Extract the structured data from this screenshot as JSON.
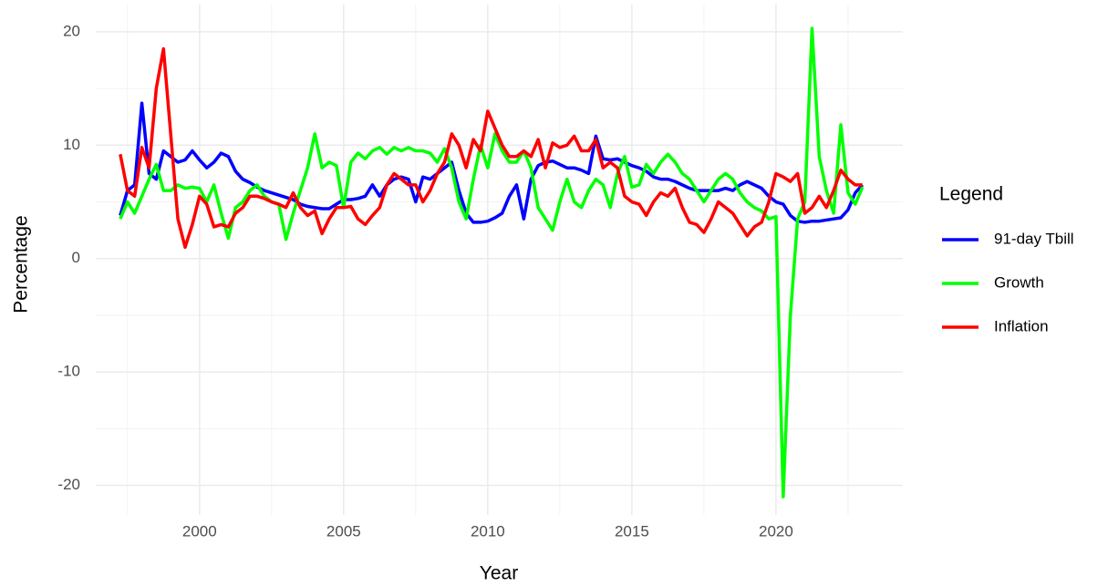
{
  "chart_data": {
    "type": "line",
    "x_label": "Year",
    "y_label": "Percentage",
    "legend_title": "Legend",
    "legend": "right",
    "grid": true,
    "xlim": [
      1996.4,
      2024.4
    ],
    "xticks": [
      2000,
      2005,
      2010,
      2015,
      2020
    ],
    "ylim": [
      -22.6,
      22.4
    ],
    "yticks": [
      -20,
      -10,
      0,
      10,
      20
    ],
    "x": [
      1997.25,
      1997.5,
      1997.75,
      1998,
      1998.25,
      1998.5,
      1998.75,
      1999,
      1999.25,
      1999.5,
      1999.75,
      2000,
      2000.25,
      2000.5,
      2000.75,
      2001,
      2001.25,
      2001.5,
      2001.75,
      2002,
      2002.25,
      2002.5,
      2002.75,
      2003,
      2003.25,
      2003.5,
      2003.75,
      2004,
      2004.25,
      2004.5,
      2004.75,
      2005,
      2005.25,
      2005.5,
      2005.75,
      2006,
      2006.25,
      2006.5,
      2006.75,
      2007,
      2007.25,
      2007.5,
      2007.75,
      2008,
      2008.25,
      2008.5,
      2008.75,
      2009,
      2009.25,
      2009.5,
      2009.75,
      2010,
      2010.25,
      2010.5,
      2010.75,
      2011,
      2011.25,
      2011.5,
      2011.75,
      2012,
      2012.25,
      2012.5,
      2012.75,
      2013,
      2013.25,
      2013.5,
      2013.75,
      2014,
      2014.25,
      2014.5,
      2014.75,
      2015,
      2015.25,
      2015.5,
      2015.75,
      2016,
      2016.25,
      2016.5,
      2016.75,
      2017,
      2017.25,
      2017.5,
      2017.75,
      2018,
      2018.25,
      2018.5,
      2018.75,
      2019,
      2019.25,
      2019.5,
      2019.75,
      2020,
      2020.25,
      2020.5,
      2020.75,
      2021,
      2021.25,
      2021.5,
      2021.75,
      2022,
      2022.25,
      2022.5,
      2022.75,
      2023
    ],
    "series": [
      {
        "name": "91-day Tbill",
        "color": "#0000ff",
        "values": [
          3.8,
          6,
          6.5,
          13.7,
          7.5,
          7,
          9.5,
          9,
          8.5,
          8.7,
          9.5,
          8.7,
          8,
          8.5,
          9.3,
          9,
          7.7,
          7,
          6.7,
          6.3,
          6,
          5.8,
          5.6,
          5.4,
          5.2,
          4.8,
          4.6,
          4.5,
          4.4,
          4.4,
          4.8,
          5.2,
          5.2,
          5.3,
          5.5,
          6.5,
          5.5,
          6.5,
          7,
          7.2,
          7,
          5,
          7.2,
          7,
          7.5,
          8,
          8.5,
          6,
          4,
          3.2,
          3.2,
          3.3,
          3.6,
          4,
          5.5,
          6.5,
          3.5,
          7,
          8.2,
          8.5,
          8.6,
          8.3,
          8,
          8,
          7.8,
          7.5,
          10.8,
          8.8,
          8.7,
          8.8,
          8.5,
          8.2,
          8,
          7.7,
          7.2,
          7,
          7,
          6.8,
          6.5,
          6.2,
          6,
          6,
          6,
          6,
          6.2,
          6,
          6.5,
          6.8,
          6.5,
          6.2,
          5.5,
          5,
          4.8,
          3.8,
          3.3,
          3.2,
          3.3,
          3.3,
          3.4,
          3.5,
          3.6,
          4.3,
          5.8,
          6.5
        ]
      },
      {
        "name": "Growth",
        "color": "#00ff00",
        "values": [
          3.5,
          5,
          4,
          5.5,
          7,
          8.3,
          6,
          6,
          6.5,
          6.2,
          6.3,
          6.2,
          5,
          6.5,
          4,
          1.8,
          4.5,
          5,
          6,
          6.5,
          5.5,
          5,
          4.8,
          1.7,
          4,
          6,
          8,
          11,
          8,
          8.5,
          8.2,
          4.5,
          8.5,
          9.3,
          8.8,
          9.5,
          9.8,
          9.2,
          9.8,
          9.5,
          9.8,
          9.5,
          9.5,
          9.3,
          8.5,
          9.7,
          8,
          5,
          3.5,
          7,
          10,
          8,
          11,
          9.5,
          8.5,
          8.5,
          9.5,
          8,
          4.5,
          3.5,
          2.5,
          5,
          7,
          5,
          4.5,
          6,
          7,
          6.5,
          4.5,
          7.5,
          9,
          6.3,
          6.5,
          8.3,
          7.5,
          8.5,
          9.2,
          8.5,
          7.5,
          7,
          6,
          5,
          6,
          7,
          7.5,
          7,
          5.8,
          5,
          4.5,
          4.2,
          3.5,
          3.7,
          -21,
          -5,
          3.5,
          5,
          20.3,
          9,
          6,
          4,
          11.8,
          5.8,
          4.8,
          6.3
        ]
      },
      {
        "name": "Inflation",
        "color": "#ff0000",
        "values": [
          9.2,
          6,
          5.5,
          9.8,
          8,
          15,
          18.5,
          11,
          3.5,
          1,
          3,
          5.5,
          4.8,
          2.8,
          3,
          2.8,
          4,
          4.5,
          5.5,
          5.5,
          5.3,
          5,
          4.8,
          4.5,
          5.8,
          4.5,
          3.8,
          4.2,
          2.2,
          3.5,
          4.5,
          4.5,
          4.6,
          3.5,
          3,
          3.8,
          4.5,
          6.5,
          7.5,
          7,
          6.5,
          6.5,
          5,
          6,
          7.5,
          8.5,
          11,
          10,
          8,
          10.5,
          9.5,
          13,
          11.5,
          10,
          9,
          9,
          9.5,
          9,
          10.5,
          8,
          10.2,
          9.8,
          10,
          10.8,
          9.5,
          9.5,
          10.5,
          8,
          8.5,
          8,
          5.5,
          5,
          4.8,
          3.8,
          5,
          5.8,
          5.5,
          6.2,
          4.5,
          3.2,
          3,
          2.3,
          3.5,
          5,
          4.5,
          4,
          3,
          2,
          2.8,
          3.2,
          5,
          7.5,
          7.2,
          6.8,
          7.5,
          4,
          4.5,
          5.5,
          4.5,
          6,
          7.8,
          7,
          6.5,
          6.5
        ]
      }
    ]
  }
}
